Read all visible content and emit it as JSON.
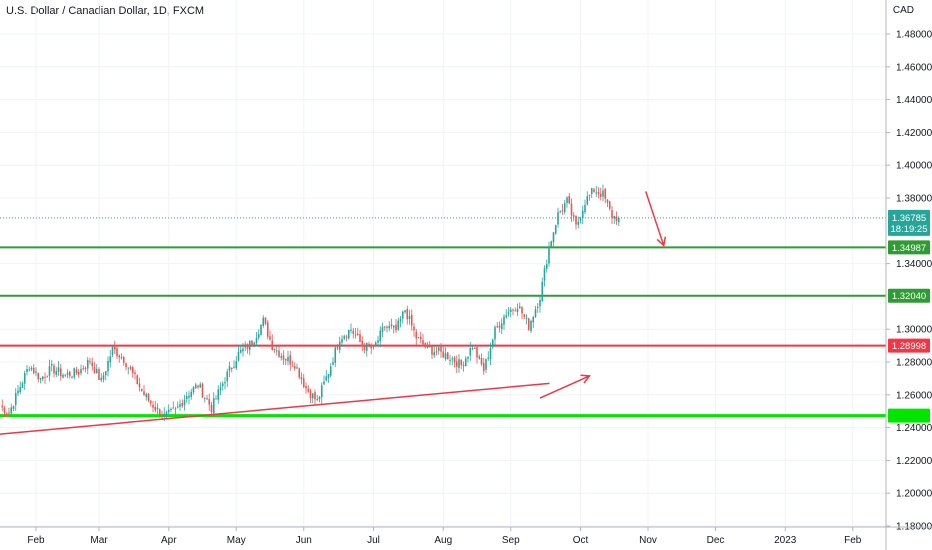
{
  "header": {
    "title": "U.S. Dollar / Canadian Dollar, 1D, FXCM",
    "currency": "CAD"
  },
  "colors": {
    "up": "#26a69a",
    "down": "#ef5350",
    "support_green": "#2e9c33",
    "bright_green": "#00e600",
    "resistance_red": "#f23645",
    "arrow_red": "#f23645",
    "price_tag": "#26a69a",
    "grid": "#f0f3fa"
  },
  "chart_data": {
    "type": "candlestick",
    "symbol": "USDCAD",
    "ylim": [
      1.178,
      1.506
    ],
    "y_ticks": [
      "1.48000",
      "1.46000",
      "1.44000",
      "1.42000",
      "1.40000",
      "1.38000",
      "1.34000",
      "1.30000",
      "1.28000",
      "1.26000",
      "1.24000",
      "1.22000",
      "1.20000",
      "1.18000"
    ],
    "x_ticks": [
      "Feb",
      "Mar",
      "Apr",
      "May",
      "Jun",
      "Jul",
      "Aug",
      "Sep",
      "Oct",
      "Nov",
      "Dec",
      "2023",
      "Feb"
    ],
    "current_price": {
      "value": "1.36785",
      "countdown": "18:19:25"
    },
    "levels": [
      {
        "value": 1.34987,
        "label": "1.34987",
        "color": "#2e9c33"
      },
      {
        "value": 1.3204,
        "label": "1.32040",
        "color": "#2e9c33"
      },
      {
        "value": 1.28998,
        "label": "1.28998",
        "color": "#f23645"
      },
      {
        "value": 1.2473,
        "label": "",
        "color": "#00e600"
      }
    ],
    "trendline": {
      "from": {
        "day": 0,
        "price": 1.236
      },
      "to": {
        "day": 262,
        "price": 1.267
      }
    },
    "arrows": [
      {
        "from": {
          "day": 240,
          "price": 1.258
        },
        "to": {
          "day": 262,
          "price": 1.2715
        }
      },
      {
        "from": {
          "day": 287,
          "price": 1.384
        },
        "to": {
          "day": 295,
          "price": 1.351
        }
      }
    ],
    "ohlc_anchors": [
      [
        0,
        1.253
      ],
      [
        4,
        1.249
      ],
      [
        8,
        1.262
      ],
      [
        13,
        1.278
      ],
      [
        18,
        1.27
      ],
      [
        23,
        1.276
      ],
      [
        29,
        1.272
      ],
      [
        35,
        1.274
      ],
      [
        40,
        1.281
      ],
      [
        45,
        1.268
      ],
      [
        50,
        1.288
      ],
      [
        55,
        1.282
      ],
      [
        60,
        1.27
      ],
      [
        64,
        1.26
      ],
      [
        69,
        1.252
      ],
      [
        73,
        1.247
      ],
      [
        78,
        1.25
      ],
      [
        83,
        1.26
      ],
      [
        88,
        1.266
      ],
      [
        94,
        1.252
      ],
      [
        100,
        1.27
      ],
      [
        106,
        1.285
      ],
      [
        112,
        1.292
      ],
      [
        117,
        1.305
      ],
      [
        121,
        1.29
      ],
      [
        126,
        1.283
      ],
      [
        131,
        1.279
      ],
      [
        136,
        1.264
      ],
      [
        141,
        1.256
      ],
      [
        146,
        1.274
      ],
      [
        151,
        1.295
      ],
      [
        156,
        1.3
      ],
      [
        161,
        1.29
      ],
      [
        166,
        1.288
      ],
      [
        171,
        1.302
      ],
      [
        176,
        1.299
      ],
      [
        180,
        1.312
      ],
      [
        185,
        1.295
      ],
      [
        190,
        1.288
      ],
      [
        195,
        1.286
      ],
      [
        200,
        1.283
      ],
      [
        205,
        1.278
      ],
      [
        210,
        1.29
      ],
      [
        215,
        1.275
      ],
      [
        220,
        1.299
      ],
      [
        225,
        1.31
      ],
      [
        230,
        1.315
      ],
      [
        235,
        1.302
      ],
      [
        240,
        1.32
      ],
      [
        244,
        1.35
      ],
      [
        248,
        1.37
      ],
      [
        252,
        1.378
      ],
      [
        256,
        1.362
      ],
      [
        260,
        1.378
      ],
      [
        264,
        1.385
      ],
      [
        268,
        1.382
      ],
      [
        272,
        1.369
      ],
      [
        275,
        1.3678
      ]
    ]
  }
}
